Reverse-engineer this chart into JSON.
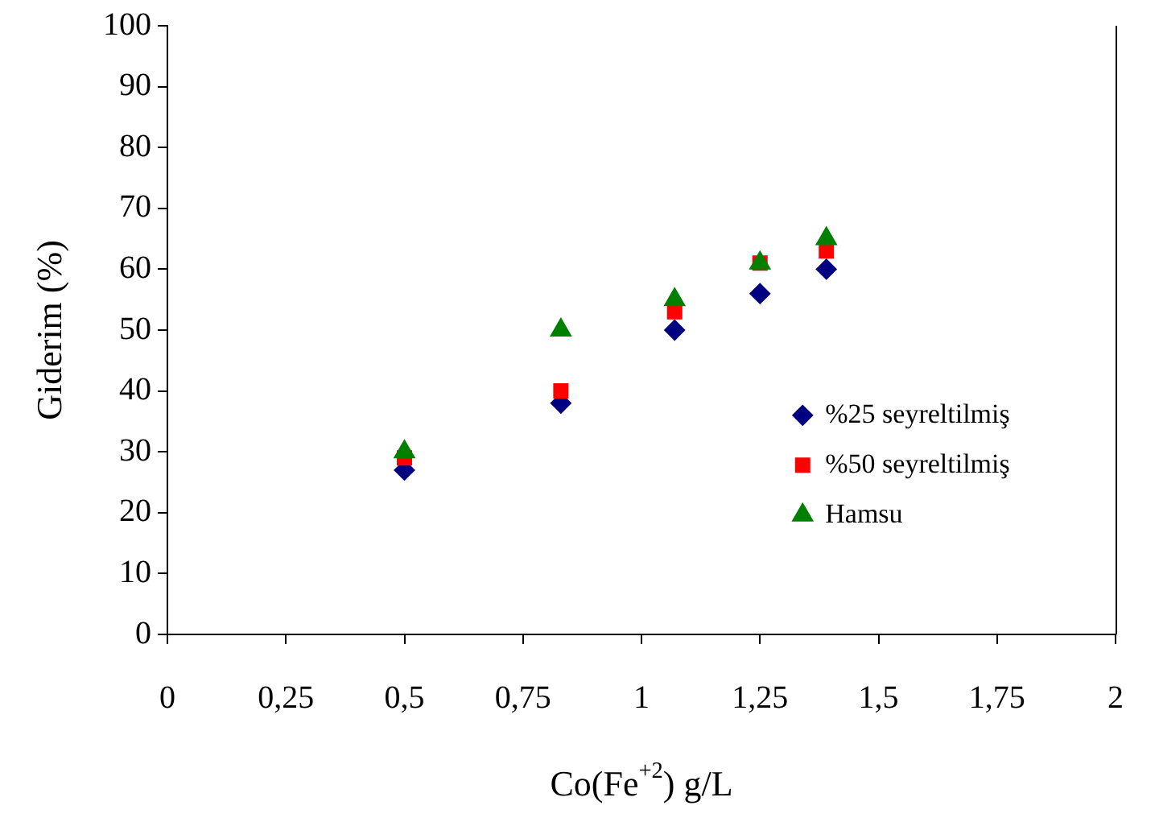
{
  "chart_data": {
    "type": "scatter",
    "xlabel": "Co(Fe$^{+2}$) g/L",
    "ylabel": "Giderim (%)",
    "xlim": [
      0,
      2
    ],
    "xticks": [
      {
        "value": 0,
        "label": "0"
      },
      {
        "value": 0.25,
        "label": "0,25"
      },
      {
        "value": 0.5,
        "label": "0,5"
      },
      {
        "value": 0.75,
        "label": "0,75"
      },
      {
        "value": 1,
        "label": "1"
      },
      {
        "value": 1.25,
        "label": "1,25"
      },
      {
        "value": 1.5,
        "label": "1,5"
      },
      {
        "value": 1.75,
        "label": "1,75"
      },
      {
        "value": 2,
        "label": "2"
      }
    ],
    "ylim": [
      0,
      100
    ],
    "yticks": [
      0,
      10,
      20,
      30,
      40,
      50,
      60,
      70,
      80,
      90,
      100
    ],
    "x": [
      0.5,
      0.83,
      1.07,
      1.25,
      1.39
    ],
    "series": [
      {
        "name": "%25 seyreltilmiş",
        "color": "#000080",
        "marker": "diamond",
        "values": [
          27,
          38,
          50,
          56,
          60
        ]
      },
      {
        "name": "%50 seyreltilmiş",
        "color": "#ff0000",
        "marker": "square",
        "values": [
          29,
          40,
          53,
          61,
          63
        ]
      },
      {
        "name": "Hamsu",
        "color": "#008000",
        "marker": "triangle",
        "values": [
          30,
          50,
          55,
          61,
          65
        ]
      }
    ],
    "legend": "right",
    "grid": false
  }
}
